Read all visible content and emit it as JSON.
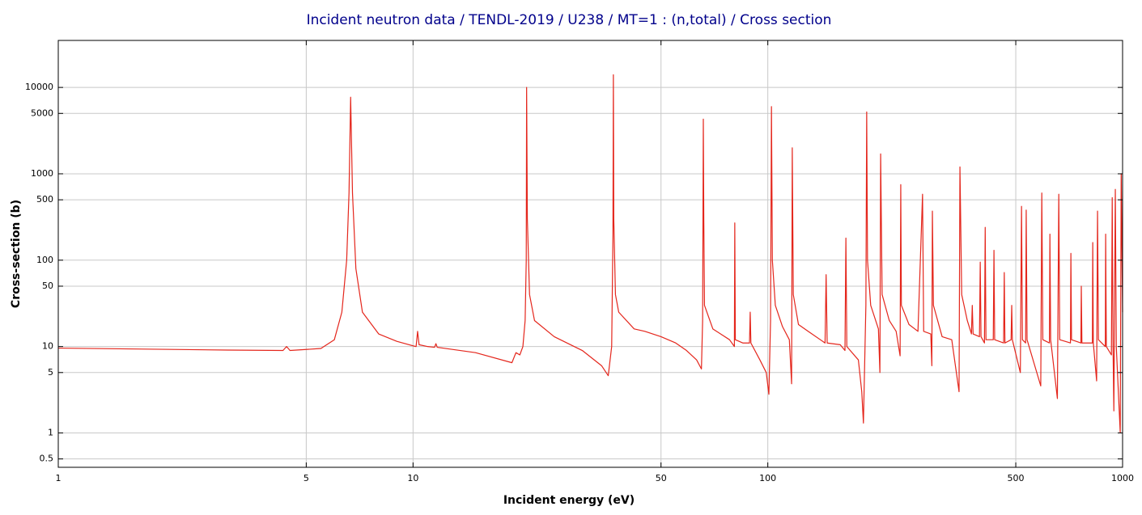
{
  "chart_data": {
    "type": "line",
    "title": "Incident neutron data / TENDL-2019 / U238 / MT=1 : (n,total) / Cross section",
    "x_label": "Incident energy (eV)",
    "y_label": "Cross-section (b)",
    "log_x": true,
    "log_y": true,
    "grid": true,
    "color": "#e4261c",
    "xlim": [
      1,
      1000
    ],
    "ylim": [
      0.4,
      35000
    ],
    "xticks": [
      1,
      5,
      10,
      50,
      100,
      500,
      1000
    ],
    "yticks": [
      0.5,
      1,
      5,
      10,
      50,
      100,
      500,
      1000,
      5000,
      10000
    ],
    "x": [
      1,
      3,
      4.3,
      4.4,
      4.5,
      5.5,
      6.0,
      6.3,
      6.5,
      6.6,
      6.67,
      6.75,
      6.9,
      7.2,
      8,
      9,
      10,
      10.2,
      10.3,
      10.4,
      11,
      11.5,
      11.6,
      11.7,
      15,
      19,
      19.5,
      20,
      20.4,
      20.7,
      20.85,
      20.9,
      21,
      21.3,
      22,
      25,
      30,
      34,
      35.5,
      36.3,
      36.6,
      36.7,
      36.8,
      37.2,
      38,
      42,
      45,
      50,
      55,
      59,
      63,
      65,
      65.5,
      65.8,
      66,
      66.3,
      70,
      78,
      80.5,
      80.7,
      81,
      85,
      88.8,
      89.2,
      89.6,
      95,
      99,
      100.7,
      101.8,
      102.4,
      103,
      105,
      110,
      115,
      116.7,
      117.2,
      118,
      122,
      130,
      145,
      146,
      147,
      160,
      165,
      166,
      167,
      180,
      184,
      186,
      189,
      190,
      191,
      195,
      205,
      207,
      208,
      210,
      220,
      230,
      236,
      237,
      238,
      250,
      265,
      273,
      275,
      288,
      290,
      291,
      293,
      310,
      330,
      346,
      348,
      352,
      365,
      375,
      377,
      379,
      395,
      397,
      399,
      408,
      410,
      412,
      432,
      434,
      436,
      462,
      464,
      466,
      485,
      487,
      489,
      515,
      519,
      522,
      533,
      535,
      538,
      588,
      592,
      596,
      622,
      624,
      627,
      655,
      661,
      665,
      713,
      715,
      718,
      763,
      765,
      768,
      822,
      824,
      827,
      845,
      850,
      855,
      894,
      896,
      900,
      930,
      935,
      940,
      945,
      954,
      960,
      985,
      991,
      1000
    ],
    "values": [
      9.6,
      9.1,
      9.0,
      10.0,
      9.0,
      9.5,
      12,
      25,
      100,
      600,
      7700,
      600,
      80,
      25,
      14,
      11.5,
      10.2,
      10,
      15,
      10.5,
      10,
      9.8,
      10.8,
      9.8,
      8.5,
      6.5,
      8.5,
      8,
      10,
      20,
      100,
      10000,
      300,
      40,
      20,
      13,
      9,
      6,
      4.6,
      10,
      200,
      14000,
      300,
      40,
      25,
      16,
      15,
      13,
      11,
      9,
      7,
      5.5,
      20,
      4300,
      300,
      30,
      16,
      12,
      10,
      270,
      12,
      11,
      11,
      25,
      11,
      7,
      5,
      2.8,
      20,
      6000,
      100,
      30,
      17,
      12,
      3.7,
      2000,
      40,
      18,
      15,
      11,
      68,
      11,
      10.5,
      9,
      180,
      10,
      7,
      3,
      1.3,
      30,
      5200,
      100,
      30,
      16,
      5,
      1700,
      40,
      20,
      15,
      7.8,
      750,
      30,
      18,
      15,
      580,
      15,
      14,
      6,
      370,
      30,
      13,
      12,
      3,
      1200,
      40,
      20,
      14,
      30,
      14,
      13,
      95,
      13,
      11,
      240,
      12,
      12,
      130,
      12,
      11,
      72,
      11,
      12,
      30,
      12,
      5,
      420,
      12,
      11,
      380,
      12,
      3.5,
      600,
      12,
      11,
      200,
      12,
      2.5,
      580,
      12,
      11,
      120,
      12,
      11,
      50,
      11,
      11,
      160,
      11,
      4,
      370,
      12,
      10,
      200,
      10,
      8,
      530,
      10,
      1.8,
      660,
      10,
      1.0,
      1000,
      25
    ]
  }
}
